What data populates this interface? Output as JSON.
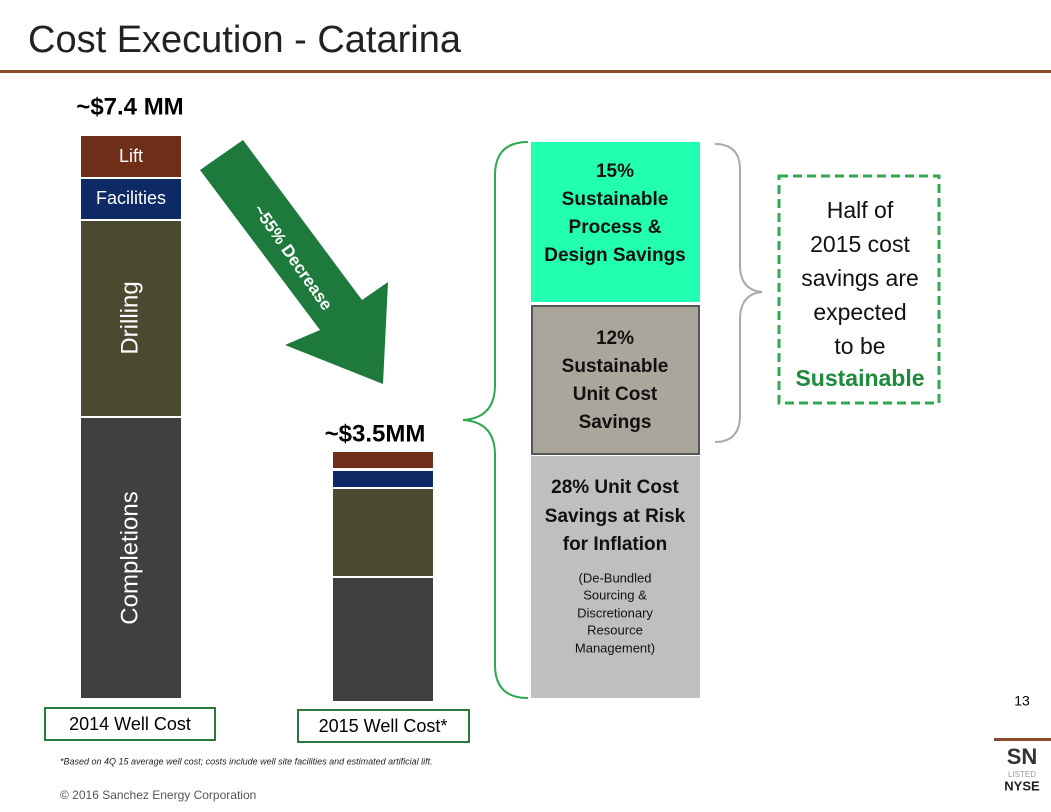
{
  "header": {
    "title": "Cost Execution - Catarina"
  },
  "bars": {
    "left_total": "~$7.4 MM",
    "right_total": "~$3.5MM",
    "segments": [
      "Lift",
      "Facilities",
      "Drilling",
      "Completions"
    ],
    "left_label": "2014 Well Cost",
    "right_label": "2015 Well Cost*"
  },
  "arrow": {
    "label": "~55% Decrease"
  },
  "savings": {
    "top": [
      "15%",
      "Sustainable",
      "Process &",
      "Design Savings"
    ],
    "middle": [
      "12%",
      "Sustainable",
      "Unit Cost",
      "Savings"
    ],
    "bottom": [
      "28% Unit Cost",
      "Savings at Risk",
      "for Inflation"
    ],
    "bottom_note": [
      "(De-Bundled",
      "Sourcing &",
      "Discretionary",
      "Resource",
      "Management)"
    ]
  },
  "callout": {
    "lines": [
      "Half of",
      "2015 cost",
      "savings are",
      "expected",
      "to be"
    ],
    "highlight": "Sustainable"
  },
  "footer": {
    "page": "13",
    "footnote": "*Based on 4Q 15 average well cost; costs include well site facilities and estimated artificial lift.",
    "copyright": "© 2016 Sanchez Energy Corporation",
    "logo_top": "SN",
    "logo_mid": "LISTED",
    "logo_bottom": "NYSE"
  }
}
